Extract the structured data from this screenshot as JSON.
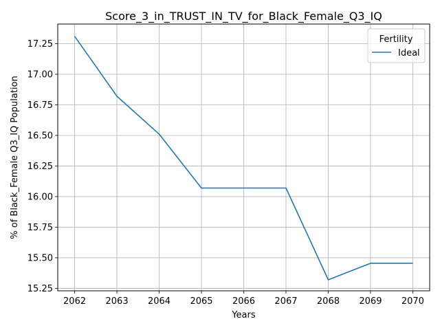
{
  "chart_data": {
    "type": "line",
    "title": "Score_3_in_TRUST_IN_TV_for_Black_Female_Q3_IQ",
    "xlabel": "Years",
    "ylabel": "% of Black_Female Q3_IQ Population",
    "x": [
      2062,
      2063,
      2064,
      2065,
      2066,
      2067,
      2068,
      2069,
      2070
    ],
    "series": [
      {
        "name": "Ideal",
        "color": "#1f77b4",
        "values": [
          17.31,
          16.82,
          16.51,
          16.07,
          16.07,
          16.07,
          15.32,
          15.455,
          15.455
        ]
      }
    ],
    "xlim": [
      2061.6,
      2070.4
    ],
    "ylim": [
      15.23,
      17.41
    ],
    "xticks": [
      "2062",
      "2063",
      "2064",
      "2065",
      "2066",
      "2067",
      "2068",
      "2069",
      "2070"
    ],
    "yticks": [
      "15.25",
      "15.50",
      "15.75",
      "16.00",
      "16.25",
      "16.50",
      "16.75",
      "17.00",
      "17.25"
    ],
    "grid": true,
    "legend": {
      "title": "Fertility",
      "placement": "top-right"
    }
  }
}
